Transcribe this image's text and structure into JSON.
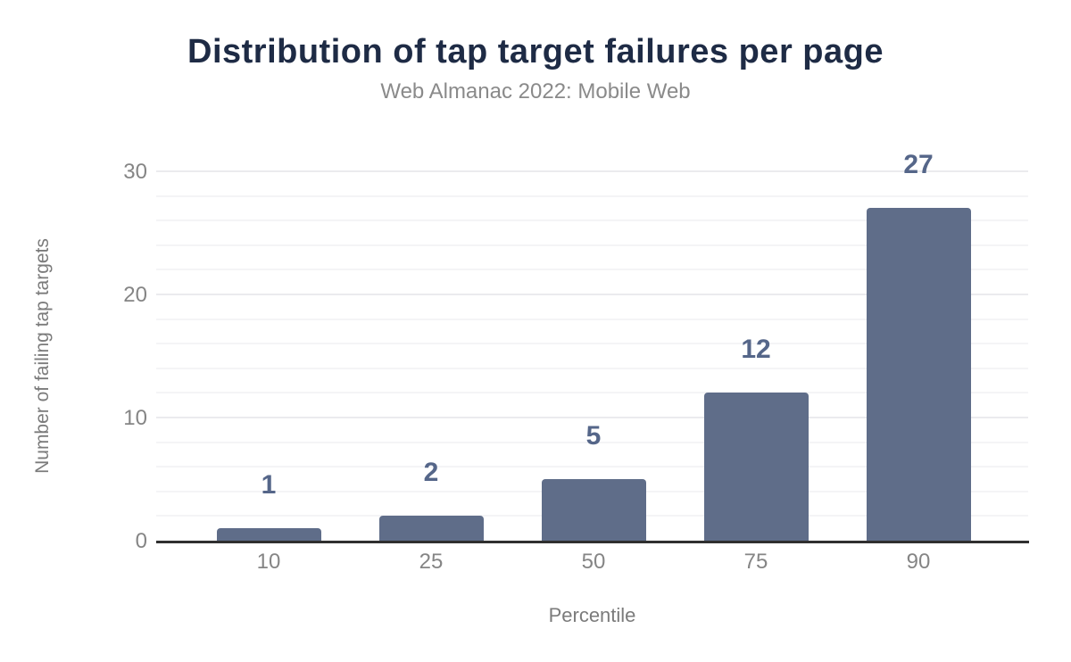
{
  "chart_data": {
    "type": "bar",
    "title": "Distribution of tap target failures per page",
    "subtitle": "Web Almanac 2022: Mobile Web",
    "xlabel": "Percentile",
    "ylabel": "Number of failing tap targets",
    "categories": [
      "10",
      "25",
      "50",
      "75",
      "90"
    ],
    "values": [
      1,
      2,
      5,
      12,
      27
    ],
    "data_labels": [
      "1",
      "2",
      "5",
      "12",
      "27"
    ],
    "ylim": [
      0,
      30
    ],
    "yticks": [
      0,
      10,
      20,
      30
    ],
    "grid": {
      "minor_step": 2,
      "major_step": 10,
      "orientation": "horizontal",
      "visible": true
    },
    "legend_position": "none",
    "colors": {
      "bar": "#5f6d89",
      "data_label": "#556689",
      "title": "#1e2b45",
      "subtitle": "#8a8a8a",
      "tick_label": "#858585",
      "axis_title": "#7b7b7b",
      "axis_line": "#2f2f2f",
      "grid_minor": "#f4f4f6",
      "grid_major": "#ebebee",
      "background": "#ffffff"
    }
  }
}
